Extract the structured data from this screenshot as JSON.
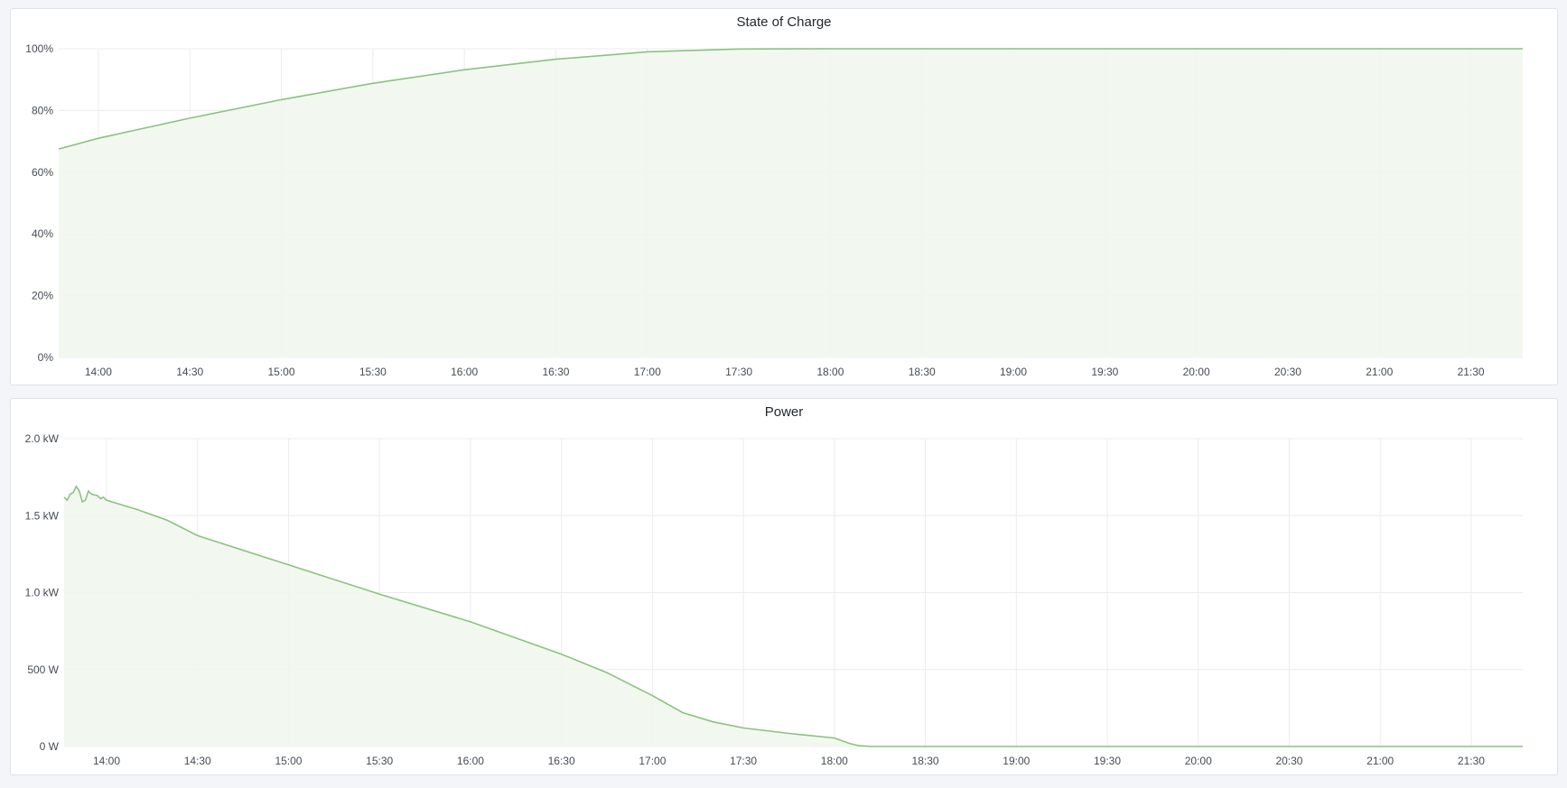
{
  "chart_data": [
    {
      "type": "area",
      "title": "State of Charge",
      "x_range": [
        "13:47",
        "21:47"
      ],
      "xticks": [
        "14:00",
        "14:30",
        "15:00",
        "15:30",
        "16:00",
        "16:30",
        "17:00",
        "17:30",
        "18:00",
        "18:30",
        "19:00",
        "19:30",
        "20:00",
        "20:30",
        "21:00",
        "21:30"
      ],
      "ylim": [
        0,
        100
      ],
      "yticks": [
        0,
        20,
        40,
        60,
        80,
        100
      ],
      "ytick_labels": [
        "0%",
        "20%",
        "40%",
        "60%",
        "80%",
        "100%"
      ],
      "grid": true,
      "color": "#8ac37f",
      "fill": "#f1f7ee",
      "series": [
        {
          "points": [
            [
              "13:47",
              67.5
            ],
            [
              "14:00",
              71
            ],
            [
              "14:30",
              77.5
            ],
            [
              "15:00",
              83.5
            ],
            [
              "15:30",
              88.8
            ],
            [
              "16:00",
              93.2
            ],
            [
              "16:30",
              96.6
            ],
            [
              "17:00",
              99
            ],
            [
              "17:30",
              99.9
            ],
            [
              "18:00",
              100
            ],
            [
              "21:47",
              100
            ]
          ]
        }
      ]
    },
    {
      "type": "area",
      "title": "Power",
      "x_range": [
        "13:46",
        "21:47"
      ],
      "xticks": [
        "14:00",
        "14:30",
        "15:00",
        "15:30",
        "16:00",
        "16:30",
        "17:00",
        "17:30",
        "18:00",
        "18:30",
        "19:00",
        "19:30",
        "20:00",
        "20:30",
        "21:00",
        "21:30"
      ],
      "ylim": [
        0,
        2000
      ],
      "yticks": [
        0,
        500,
        1000,
        1500,
        2000
      ],
      "ytick_labels": [
        "0 W",
        "500 W",
        "1.0 kW",
        "1.5 kW",
        "2.0 kW"
      ],
      "grid": true,
      "color": "#8ac37f",
      "fill": "#f1f7ee",
      "series": [
        {
          "points": [
            [
              "13:46",
              1620
            ],
            [
              "13:47",
              1600
            ],
            [
              "13:48",
              1640
            ],
            [
              "13:49",
              1650
            ],
            [
              "13:50",
              1690
            ],
            [
              "13:51",
              1660
            ],
            [
              "13:52",
              1590
            ],
            [
              "13:53",
              1600
            ],
            [
              "13:54",
              1660
            ],
            [
              "13:55",
              1640
            ],
            [
              "13:57",
              1630
            ],
            [
              "13:58",
              1610
            ],
            [
              "13:59",
              1620
            ],
            [
              "14:00",
              1600
            ],
            [
              "14:10",
              1540
            ],
            [
              "14:20",
              1470
            ],
            [
              "14:30",
              1370
            ],
            [
              "15:00",
              1180
            ],
            [
              "15:30",
              990
            ],
            [
              "16:00",
              810
            ],
            [
              "16:30",
              600
            ],
            [
              "16:45",
              480
            ],
            [
              "17:00",
              330
            ],
            [
              "17:10",
              220
            ],
            [
              "17:20",
              160
            ],
            [
              "17:30",
              120
            ],
            [
              "17:45",
              85
            ],
            [
              "18:00",
              55
            ],
            [
              "18:05",
              20
            ],
            [
              "18:08",
              5
            ],
            [
              "18:12",
              0
            ],
            [
              "21:47",
              0
            ]
          ]
        }
      ]
    }
  ]
}
